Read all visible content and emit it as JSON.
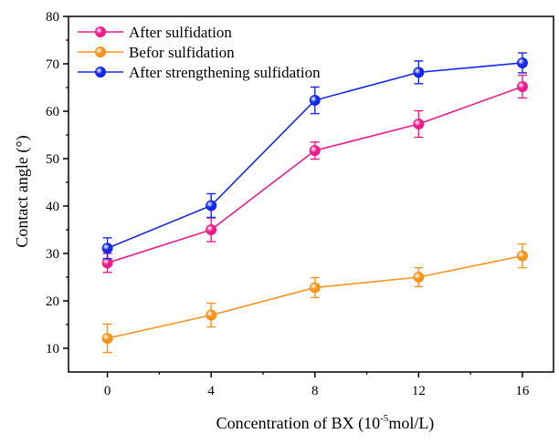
{
  "chart_data": {
    "type": "line",
    "xlabel": {
      "text": "Concentration of BX (10",
      "superscript": "-5",
      "suffix": "mol/L)"
    },
    "ylabel": "Contact angle (°)",
    "x": [
      0,
      4,
      8,
      12,
      16
    ],
    "x_ticks": [
      "0",
      "4",
      "8",
      "12",
      "16"
    ],
    "xlim": [
      -1.5,
      17.2
    ],
    "ylim": [
      5,
      80
    ],
    "y_ticks": [
      "10",
      "20",
      "30",
      "40",
      "50",
      "60",
      "70",
      "80"
    ],
    "grid": false,
    "legend_position": "top-left",
    "series": [
      {
        "name": "After sulfidation",
        "color": "#ee1c8a",
        "marker": "half-filled circle",
        "values": [
          28.0,
          35.0,
          51.7,
          57.3,
          65.2
        ],
        "errors": [
          2.0,
          2.5,
          1.8,
          2.8,
          2.4
        ]
      },
      {
        "name": "Befor sulfidation",
        "color": "#f7941d",
        "marker": "filled circle",
        "values": [
          12.1,
          17.0,
          22.8,
          25.0,
          29.5
        ],
        "errors": [
          3.0,
          2.5,
          2.1,
          2.0,
          2.5
        ]
      },
      {
        "name": "After strengthening sulfidation",
        "color": "#1428e8",
        "marker": "half-filled circle",
        "values": [
          31.1,
          40.1,
          62.3,
          68.2,
          70.2
        ],
        "errors": [
          2.2,
          2.5,
          2.8,
          2.4,
          2.1
        ]
      }
    ]
  }
}
